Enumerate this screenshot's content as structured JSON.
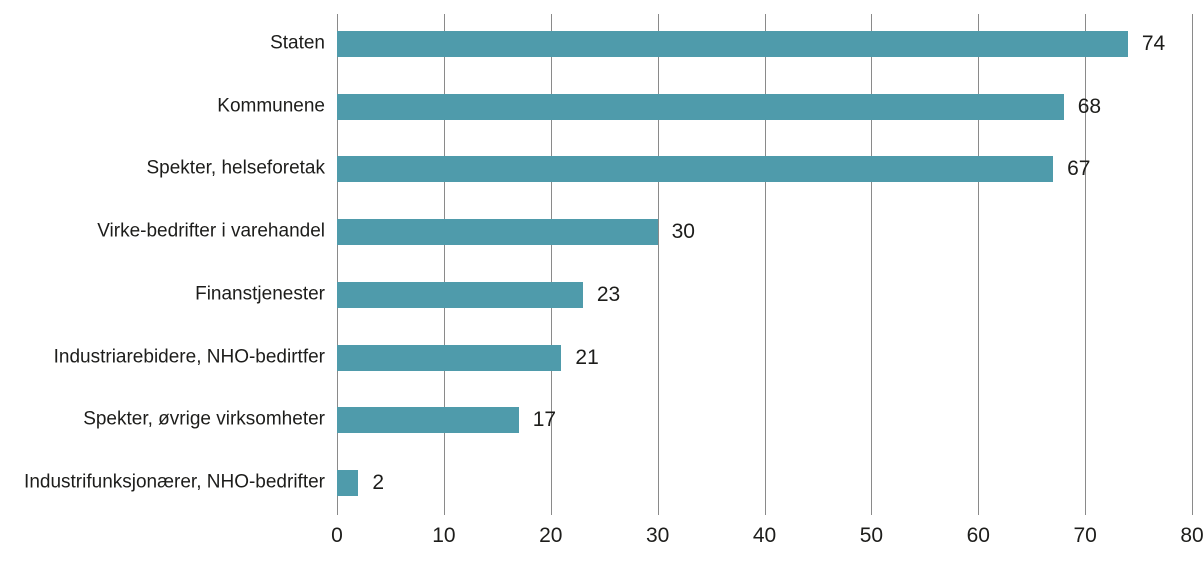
{
  "chart_data": {
    "type": "bar",
    "orientation": "horizontal",
    "title": "",
    "xlabel": "",
    "ylabel": "",
    "categories": [
      "Staten",
      "Kommunene",
      "Spekter, helseforetak",
      "Virke-bedrifter i varehandel",
      "Finanstjenester",
      "Industriarebidere, NHO-bedirtfer",
      "Spekter, øvrige virksomheter",
      "Industrifunksjonærer, NHO-bedrifter"
    ],
    "values": [
      74,
      68,
      67,
      30,
      23,
      21,
      17,
      2
    ],
    "value_labels": [
      "74",
      "68",
      "67",
      "30",
      "23",
      "21",
      "17",
      "2"
    ],
    "xlim": [
      0,
      80
    ],
    "xticks": [
      0,
      10,
      20,
      30,
      40,
      50,
      60,
      70,
      80
    ],
    "grid": "vertical-gridlines-on",
    "legend": "none",
    "colors": {
      "bar": "#4f9bab",
      "gridline": "#8a8a8a",
      "text": "#1d1d1b",
      "background": "#ffffff"
    }
  }
}
